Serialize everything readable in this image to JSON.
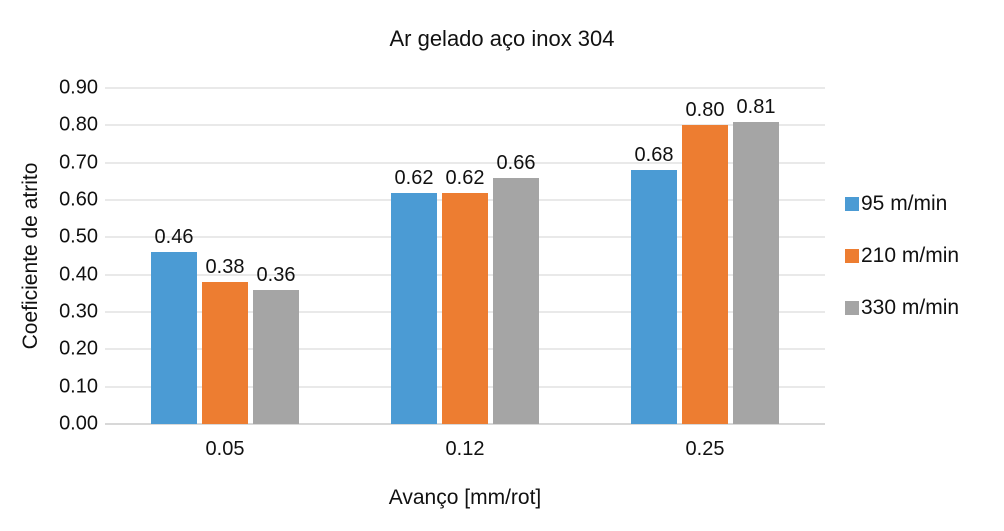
{
  "chart_data": {
    "type": "bar",
    "title": "Ar gelado aço inox 304",
    "xlabel": "Avanço [mm/rot]",
    "ylabel": "Coeficiente de atrito",
    "categories": [
      "0.05",
      "0.12",
      "0.25"
    ],
    "series": [
      {
        "name": "95 m/min",
        "color": "#4B9BD4",
        "values": [
          0.46,
          0.62,
          0.68
        ]
      },
      {
        "name": "210 m/min",
        "color": "#ED7D31",
        "values": [
          0.38,
          0.62,
          0.8
        ]
      },
      {
        "name": "330 m/min",
        "color": "#A5A5A5",
        "values": [
          0.36,
          0.66,
          0.81
        ]
      }
    ],
    "ylim": [
      0,
      0.9
    ],
    "yticks": [
      "0.00",
      "0.10",
      "0.20",
      "0.30",
      "0.40",
      "0.50",
      "0.60",
      "0.70",
      "0.80",
      "0.90"
    ],
    "grid": "horizontal",
    "legend_position": "right",
    "data_labels_decimals": 2
  }
}
